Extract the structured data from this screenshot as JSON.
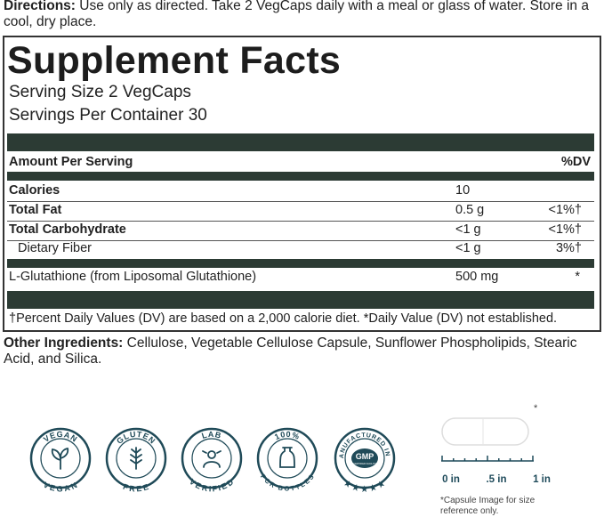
{
  "directions": {
    "label": "Directions:",
    "text": "Use only as directed. Take 2 VegCaps daily with a meal or glass of water. Store in a cool, dry place."
  },
  "facts": {
    "title": "Supplement Facts",
    "serving_size": "Serving Size 2 VegCaps",
    "servings_per_container": "Servings Per Container 30",
    "header": {
      "amount": "Amount Per Serving",
      "dv": "%DV"
    },
    "rows": [
      {
        "name": "Calories",
        "amount": "10"
      },
      {
        "name": "Total Fat",
        "amount": "0.5 g",
        "dv": "<1%†"
      },
      {
        "name": "Total Carbohydrate",
        "amount": "<1 g",
        "dv": "<1%†"
      },
      {
        "name": "Dietary Fiber",
        "amount": "<1 g",
        "dv": "3%†"
      },
      {
        "name": "L-Glutathione (from Liposomal Glutathione)",
        "amount": "500 mg",
        "dv": "*"
      }
    ],
    "footnote": "†Percent Daily Values (DV) are based on a 2,000 calorie diet. *Daily Value (DV) not established."
  },
  "other_ingredients": {
    "label": "Other Ingredients:",
    "text": "Cellulose, Vegetable Cellulose Capsule, Sunflower Phospholipids, Stearic Acid, and Silica."
  },
  "badges": [
    {
      "top": "VEGAN",
      "bottom": "VEGAN"
    },
    {
      "top": "GLUTEN",
      "bottom": "FREE"
    },
    {
      "top": "LAB",
      "bottom": "VERIFIED"
    },
    {
      "top": "100%",
      "bottom": "PCR BOTTLES"
    },
    {
      "top": "MANUFACTURED IN A",
      "center": "GMP",
      "center_sub": "CERTIFIED FACILITY",
      "bottom": "★★★★★"
    }
  ],
  "capsule": {
    "asterisk": "*",
    "scale": [
      "0 in",
      ".5 in",
      "1 in"
    ],
    "note": "*Capsule Image for size reference only."
  }
}
